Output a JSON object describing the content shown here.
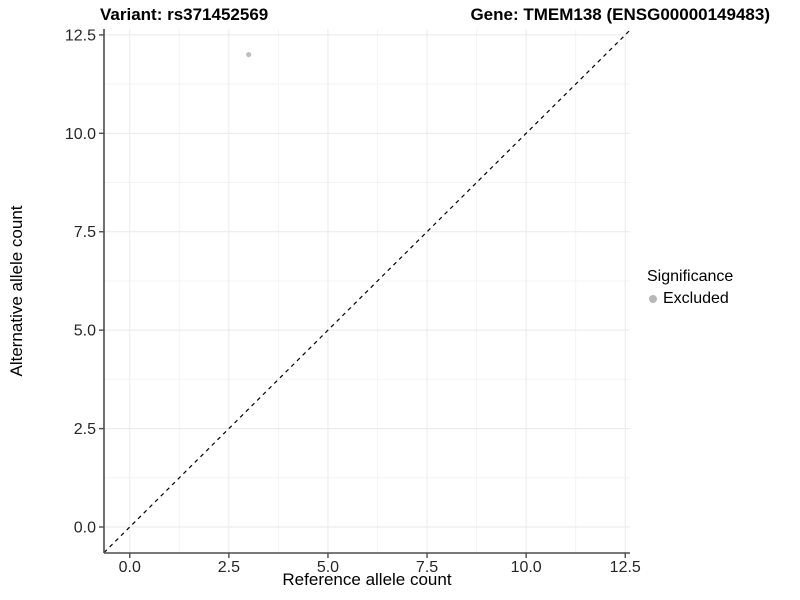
{
  "chart_data": {
    "type": "scatter",
    "titles": {
      "left": "Variant: rs371452569",
      "right": "Gene: TMEM138 (ENSG00000149483)"
    },
    "xlabel": "Reference allele count",
    "ylabel": "Alternative allele count",
    "ticks": {
      "values": [
        0,
        2.5,
        5,
        7.5,
        10,
        12.5
      ],
      "labels": [
        "0.0",
        "2.5",
        "5.0",
        "7.5",
        "10.0",
        "12.5"
      ]
    },
    "xlim": [
      -0.65,
      12.62
    ],
    "ylim": [
      -0.66,
      12.65
    ],
    "grid": {
      "major": true,
      "minor": true
    },
    "points": [
      {
        "x": 3,
        "y": 12,
        "significance": "Excluded"
      }
    ],
    "identity_line": {
      "slope": 1,
      "intercept": 0,
      "style": "dashed"
    },
    "legend": {
      "title": "Significance",
      "position": "right",
      "items": [
        {
          "label": "Excluded",
          "color": "#b8b8b8"
        }
      ]
    },
    "colors": {
      "point": "#bebebe",
      "axis_line": "#4d4d4d",
      "grid_major": "#eaeaea",
      "grid_minor": "#f4f4f4",
      "dashed_line": "#000000",
      "tick_text": "#262626",
      "title_text": "#000000"
    }
  }
}
